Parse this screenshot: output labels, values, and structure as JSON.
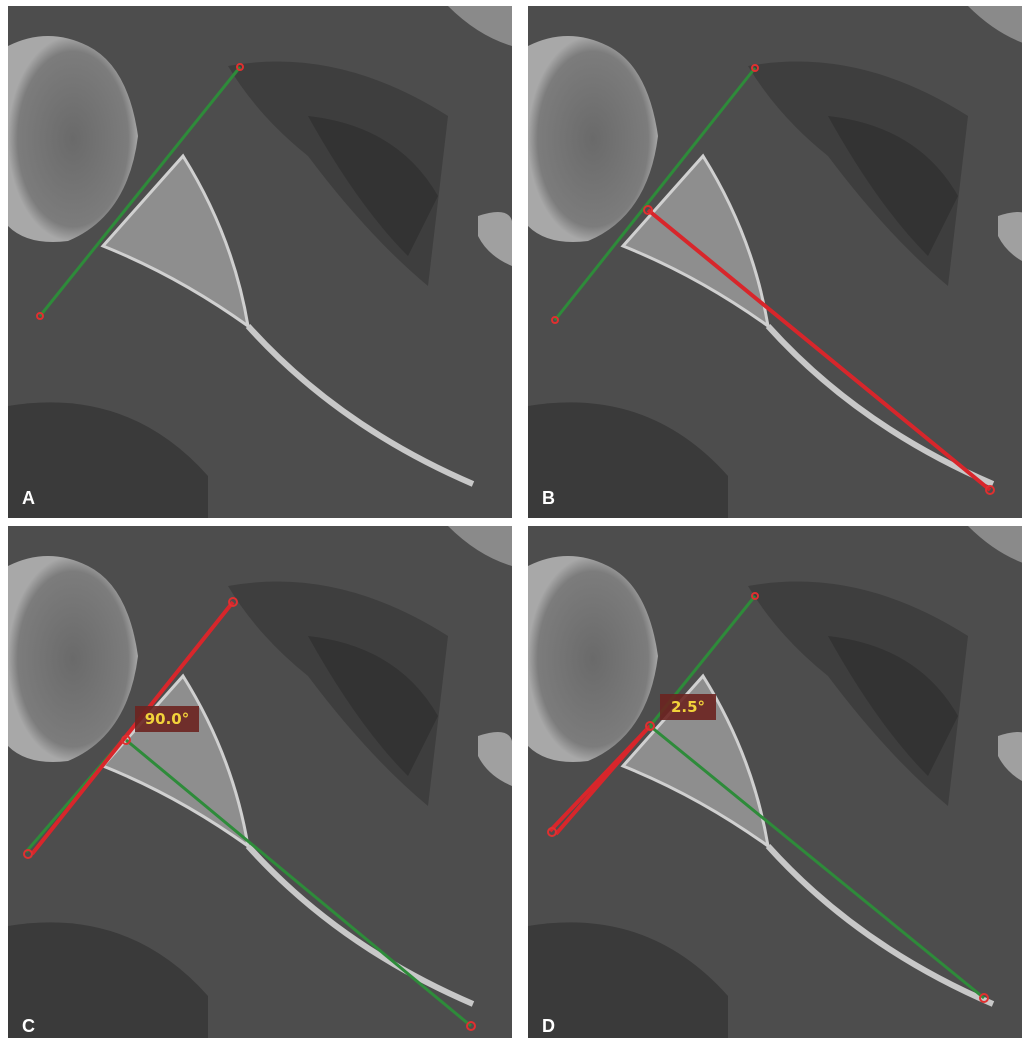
{
  "panels": [
    {
      "label": "A"
    },
    {
      "label": "B"
    },
    {
      "label": "C",
      "angle": "90.0°"
    },
    {
      "label": "D",
      "angle": "2.5°"
    }
  ]
}
